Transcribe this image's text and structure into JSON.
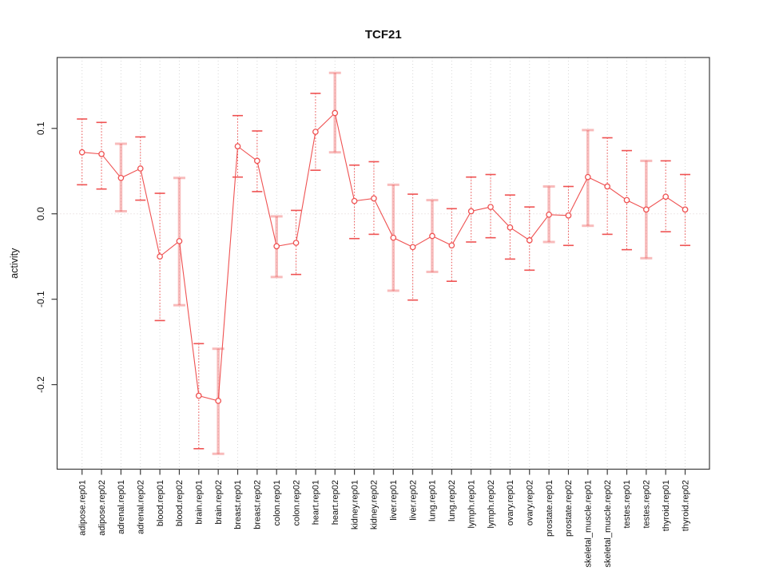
{
  "title": "TCF21",
  "chart_data": {
    "type": "scatter",
    "title": "TCF21",
    "xlabel": "",
    "ylabel": "activity",
    "legend": "none",
    "grid": "vertical dotted gridline per category; dotted horizontal line at y=0",
    "ylim": [
      -0.299,
      0.183
    ],
    "yticks": [
      0.1,
      0.0,
      -0.1,
      -0.2
    ],
    "ytick_labels": [
      "0.1",
      "0.0",
      "-0.1",
      "-0.2"
    ],
    "marker": "open-circle",
    "categories": [
      "adipose.rep01",
      "adipose.rep02",
      "adrenal.rep01",
      "adrenal.rep02",
      "blood.rep01",
      "blood.rep02",
      "brain.rep01",
      "brain.rep02",
      "breast.rep01",
      "breast.rep02",
      "colon.rep01",
      "colon.rep02",
      "heart.rep01",
      "heart.rep02",
      "kidney.rep01",
      "kidney.rep02",
      "liver.rep01",
      "liver.rep02",
      "lung.rep01",
      "lung.rep02",
      "lymph.rep01",
      "lymph.rep02",
      "ovary.rep01",
      "ovary.rep02",
      "prostate.rep01",
      "prostate.rep02",
      "skeletal_muscle.rep01",
      "skeletal_muscle.rep02",
      "testes.rep01",
      "testes.rep02",
      "thyroid.rep01",
      "thyroid.rep02"
    ],
    "series": [
      {
        "name": "activity",
        "values": [
          0.072,
          0.07,
          0.042,
          0.053,
          -0.05,
          -0.032,
          -0.213,
          -0.219,
          0.079,
          0.062,
          -0.038,
          -0.034,
          0.096,
          0.118,
          0.015,
          0.018,
          -0.028,
          -0.039,
          -0.026,
          -0.037,
          0.003,
          0.008,
          -0.016,
          -0.031,
          -0.001,
          -0.002,
          0.043,
          0.032,
          0.016,
          0.005,
          0.02,
          0.005
        ],
        "ci_low": [
          0.034,
          0.029,
          0.003,
          0.016,
          -0.125,
          -0.107,
          -0.275,
          -0.281,
          0.043,
          0.026,
          -0.074,
          -0.071,
          0.051,
          0.072,
          -0.029,
          -0.024,
          -0.09,
          -0.101,
          -0.068,
          -0.079,
          -0.033,
          -0.028,
          -0.053,
          -0.066,
          -0.033,
          -0.037,
          -0.014,
          -0.024,
          -0.042,
          -0.052,
          -0.021,
          -0.037
        ],
        "ci_high": [
          0.111,
          0.107,
          0.082,
          0.09,
          0.024,
          0.042,
          -0.152,
          -0.158,
          0.115,
          0.097,
          -0.003,
          0.004,
          0.141,
          0.165,
          0.057,
          0.061,
          0.034,
          0.023,
          0.016,
          0.006,
          0.043,
          0.046,
          0.022,
          0.008,
          0.032,
          0.032,
          0.098,
          0.089,
          0.074,
          0.062,
          0.062,
          0.046
        ],
        "bar_styles": [
          "dotted",
          "dotted",
          "thick",
          "dotted",
          "dotted",
          "thick",
          "dotted",
          "thick",
          "dotted",
          "dotted",
          "thick",
          "dotted",
          "dotted",
          "thick",
          "dotted",
          "dotted",
          "thick",
          "dotted",
          "thick",
          "dotted",
          "dotted",
          "dotted",
          "dotted",
          "dotted",
          "thick",
          "dotted",
          "thick",
          "dotted",
          "dotted",
          "thick",
          "dotted",
          "dotted"
        ]
      }
    ],
    "colors": {
      "line": "#ef5252",
      "pale_bar": "rgba(239,92,92,0.42)",
      "gridline": "#d7d7d7",
      "zero_line": "#ddcfcf",
      "frame": "#3c3c3c"
    }
  }
}
